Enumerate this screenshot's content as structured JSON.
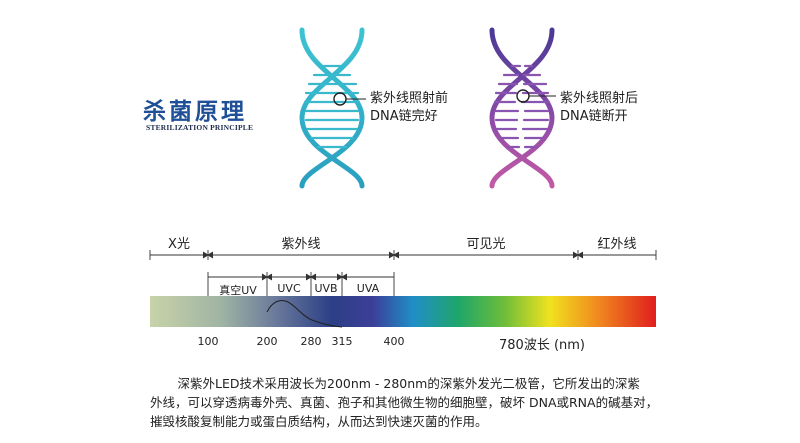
{
  "title": {
    "cn": "杀菌原理",
    "en": "STERILIZATION PRINCIPLE"
  },
  "dna_left": {
    "label_line1": "紫外线照射前",
    "label_line2": "DNA链完好"
  },
  "dna_right": {
    "label_line1": "紫外线照射后",
    "label_line2": "DNA链断开"
  },
  "spectrum": {
    "bands": [
      "X光",
      "紫外线",
      "可见光",
      "红外线"
    ],
    "sub_bands": [
      "真空UV",
      "UVC",
      "UVB",
      "UVA"
    ],
    "ticks": [
      "100",
      "200",
      "280",
      "315",
      "400"
    ],
    "end_label": "780波长 (nm)"
  },
  "description": {
    "line1": "深紫外LED技术采用波长为200nm - 280nm的深紫外发光二极管，它所发出的深紫",
    "line2": "外线，可以穿透病毒外壳、真菌、孢子和其他微生物的细胞壁，破坏 DNA或RNA的碱基对，",
    "line3": "摧毁核酸复制能力或蛋白质结构，从而达到快速灭菌的作用。"
  },
  "colors": {
    "title": "#1f4f97",
    "dna_left": "#2fb5c9",
    "dna_right_start": "#5a3f9a",
    "dna_right_end": "#c05aa8"
  }
}
